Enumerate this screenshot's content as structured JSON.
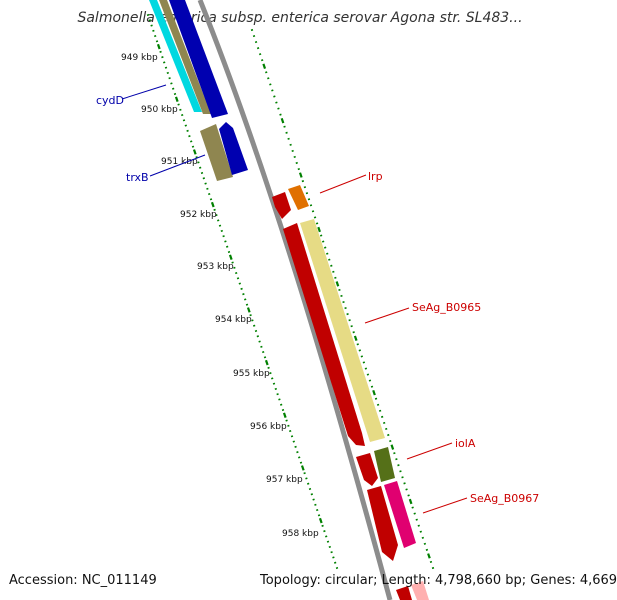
{
  "title": "Salmonella enterica subsp. enterica serovar Agona str. SL483...",
  "accession_text": "Accession: NC_011149",
  "info_text": "Topology: circular; Length: 4,798,660 bp; Genes: 4,669",
  "kbp_labels": [
    "949 kbp",
    "950 kbp",
    "951 kbp",
    "952 kbp",
    "953 kbp",
    "954 kbp",
    "955 kbp",
    "956 kbp",
    "957 kbp",
    "958 kbp"
  ],
  "gene_labels": {
    "cydD": "cydD",
    "trxB": "trxB",
    "lrp": "lrp",
    "b0965": "SeAg_B0965",
    "iolA": "iolA",
    "b0967": "SeAg_B0967"
  },
  "colors": {
    "cyan": "#1ee6f0",
    "khaki": "#b3aa70",
    "blue": "#0000ee",
    "red": "#ee0000",
    "orange": "#ff8c00",
    "pale_yellow": "#f0e68c",
    "olive": "#6b8e23",
    "magenta": "#ff1493",
    "backbone": "#8c8c8c",
    "tick_green": "#008000"
  }
}
